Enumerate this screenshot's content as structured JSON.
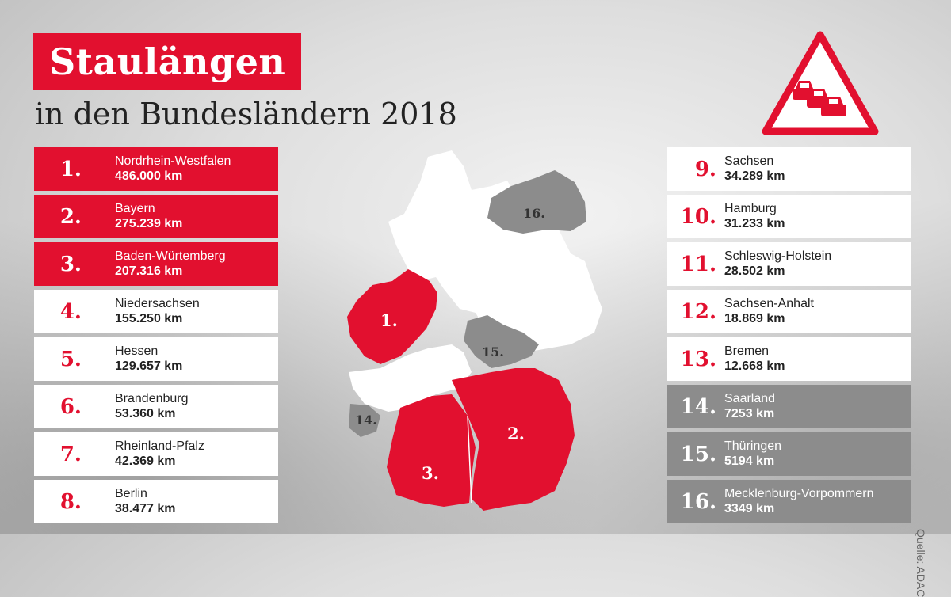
{
  "title": "Staulängen",
  "subtitle": "in den Bundesländern 2018",
  "source": "Quelle: ADAC",
  "colors": {
    "accent": "#e2102f",
    "grey": "#8c8c8c",
    "white": "#ffffff"
  },
  "warning_icon": "traffic-jam-warning-sign",
  "ranking": [
    {
      "rank": "1.",
      "state": "Nordrhein-Westfalen",
      "length": "486.000 km",
      "style": "red"
    },
    {
      "rank": "2.",
      "state": "Bayern",
      "length": "275.239 km",
      "style": "red"
    },
    {
      "rank": "3.",
      "state": "Baden-Würtemberg",
      "length": "207.316 km",
      "style": "red"
    },
    {
      "rank": "4.",
      "state": "Niedersachsen",
      "length": "155.250 km",
      "style": "white"
    },
    {
      "rank": "5.",
      "state": "Hessen",
      "length": "129.657 km",
      "style": "white"
    },
    {
      "rank": "6.",
      "state": "Brandenburg",
      "length": "53.360 km",
      "style": "white"
    },
    {
      "rank": "7.",
      "state": "Rheinland-Pfalz",
      "length": "42.369 km",
      "style": "white"
    },
    {
      "rank": "8.",
      "state": "Berlin",
      "length": "38.477 km",
      "style": "white"
    },
    {
      "rank": "9.",
      "state": "Sachsen",
      "length": "34.289 km",
      "style": "white"
    },
    {
      "rank": "10.",
      "state": "Hamburg",
      "length": "31.233 km",
      "style": "white"
    },
    {
      "rank": "11.",
      "state": "Schleswig-Holstein",
      "length": "28.502 km",
      "style": "white"
    },
    {
      "rank": "12.",
      "state": "Sachsen-Anhalt",
      "length": "18.869 km",
      "style": "white"
    },
    {
      "rank": "13.",
      "state": "Bremen",
      "length": "12.668 km",
      "style": "white"
    },
    {
      "rank": "14.",
      "state": "Saarland",
      "length": "7253 km",
      "style": "grey"
    },
    {
      "rank": "15.",
      "state": "Thüringen",
      "length": "5194 km",
      "style": "grey"
    },
    {
      "rank": "16.",
      "state": "Mecklenburg-Vorpommern",
      "length": "3349 km",
      "style": "grey"
    }
  ],
  "map_labels": [
    "1.",
    "2.",
    "3.",
    "14.",
    "15.",
    "16."
  ]
}
